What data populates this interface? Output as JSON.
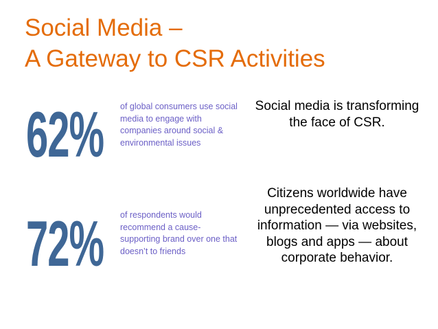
{
  "title": {
    "line1": "Social Media –",
    "line2": "A Gateway to CSR Activities"
  },
  "stats": [
    {
      "value": "62%",
      "description": "of global consumers use social media to engage with companies around social & environmental issues"
    },
    {
      "value": "72%",
      "description": "of respondents would recommend a cause-supporting brand over one that doesn’t to friends"
    }
  ],
  "body": {
    "para1": "Social media is transforming the face of CSR.",
    "para2": "Citizens worldwide have unprecedented access to information — via websites, blogs and apps — about corporate behavior."
  },
  "colors": {
    "title": "#e46c0a",
    "stat_number": "#3f6796",
    "stat_text": "#6b5fc6",
    "body_text": "#000000"
  }
}
